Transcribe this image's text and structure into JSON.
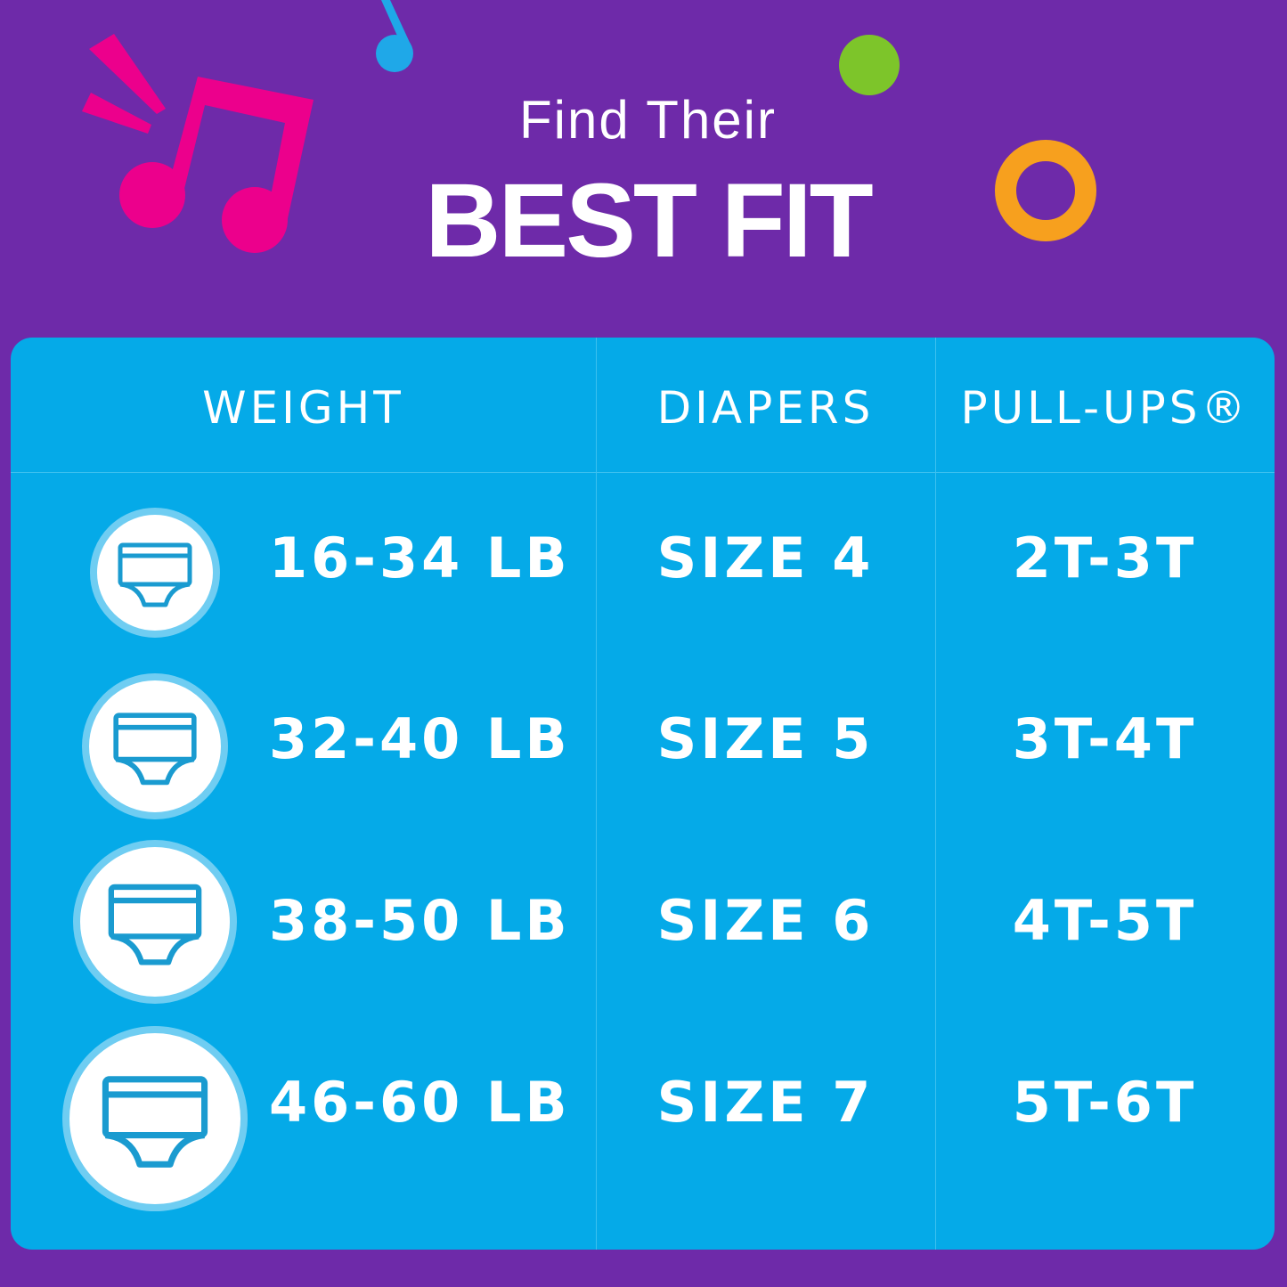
{
  "title": {
    "line1": "Find Their",
    "line2": "BEST FIT"
  },
  "colors": {
    "background": "#6e2aa9",
    "table": "#05aae8",
    "note_pink": "#ec008c",
    "note_blue": "#1fa8e8",
    "dot_green": "#7dc52a",
    "ring_orange": "#f7a01e"
  },
  "table": {
    "headers": [
      "WEIGHT",
      "DIAPERS",
      "PULL-UPS®"
    ],
    "rows": [
      {
        "icon": "underwear-icon",
        "weight": "16-34 LB",
        "diapers": "SIZE 4",
        "pullups": "2T-3T"
      },
      {
        "icon": "underwear-icon",
        "weight": "32-40 LB",
        "diapers": "SIZE 5",
        "pullups": "3T-4T"
      },
      {
        "icon": "underwear-icon",
        "weight": "38-50 LB",
        "diapers": "SIZE 6",
        "pullups": "4T-5T"
      },
      {
        "icon": "underwear-icon",
        "weight": "46-60 LB",
        "diapers": "SIZE 7",
        "pullups": "5T-6T"
      }
    ]
  }
}
